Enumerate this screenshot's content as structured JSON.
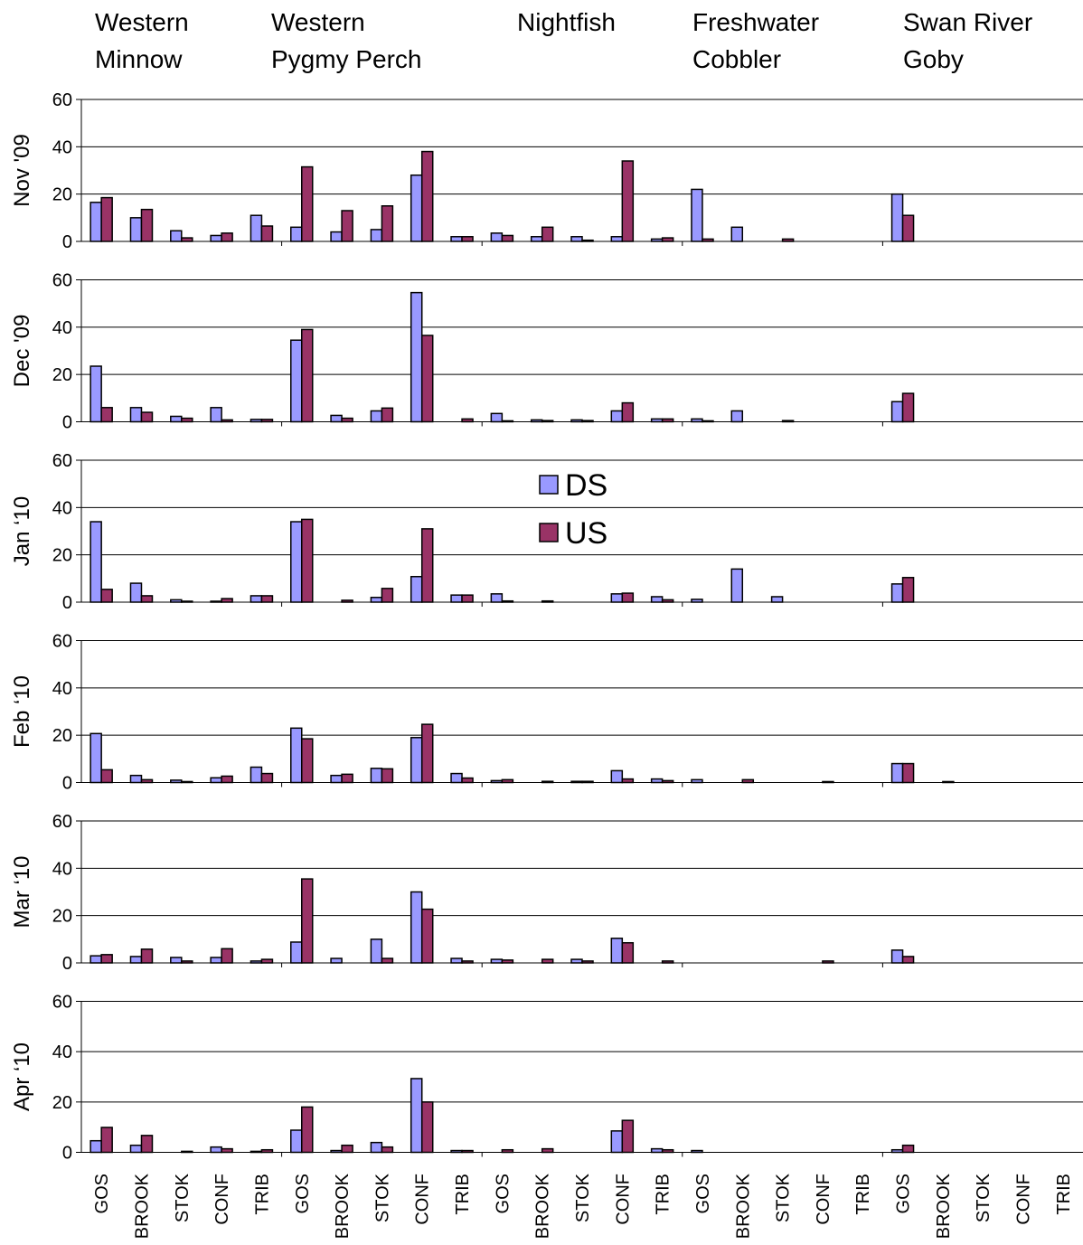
{
  "chart_data": {
    "type": "bar",
    "columns": [
      "Western Minnow",
      "Western Pygmy Perch",
      "Nightfish",
      "Freshwater Cobbler",
      "Swan River Goby"
    ],
    "rows": [
      "Nov '09",
      "Dec '09",
      "Jan ‘10",
      "Feb ‘10",
      "Mar ‘10",
      "Apr ‘10"
    ],
    "categories": [
      "GOS",
      "BROOK",
      "STOK",
      "CONF",
      "TRIB"
    ],
    "ylim": [
      0,
      60
    ],
    "yticks": [
      0,
      20,
      40,
      60
    ],
    "grid": true,
    "series": [
      {
        "name": "DS",
        "color": "#9999ff",
        "values": [
          [
            [
              16.5,
              10,
              4.5,
              2.5,
              11
            ],
            [
              6,
              4,
              5,
              28,
              2
            ],
            [
              3.5,
              2,
              2,
              2,
              1
            ],
            [
              22,
              6,
              0,
              0,
              0
            ],
            [
              20,
              0,
              0,
              0,
              0
            ]
          ],
          [
            [
              23.5,
              6,
              2.3,
              6,
              1
            ],
            [
              34.5,
              2.7,
              4.6,
              54.6,
              0
            ],
            [
              3.5,
              0.8,
              0.8,
              4.6,
              1.2
            ],
            [
              1.2,
              4.6,
              0,
              0,
              0
            ],
            [
              8.5,
              0,
              0,
              0,
              0
            ]
          ],
          [
            [
              34,
              8,
              1,
              0.4,
              2.7
            ],
            [
              34,
              0,
              2,
              10.8,
              3
            ],
            [
              3.5,
              0,
              0,
              3.5,
              2.3
            ],
            [
              1.2,
              14,
              2.3,
              0,
              0
            ],
            [
              7.7,
              0,
              0,
              0,
              0
            ]
          ],
          [
            [
              20.7,
              3,
              1,
              2,
              6.5
            ],
            [
              23,
              3,
              6,
              19,
              3.8
            ],
            [
              0.8,
              0,
              0.5,
              5,
              1.5
            ],
            [
              1.2,
              0,
              0,
              0,
              0
            ],
            [
              8,
              0,
              0,
              0,
              0
            ]
          ],
          [
            [
              3,
              2.7,
              2.3,
              2.3,
              0.8
            ],
            [
              8.8,
              1.9,
              10,
              30,
              1.9
            ],
            [
              1.5,
              0,
              1.5,
              10.4,
              0
            ],
            [
              0,
              0,
              0,
              0,
              0
            ],
            [
              5.4,
              0,
              0,
              0,
              0
            ]
          ],
          [
            [
              4.6,
              2.8,
              0,
              2.1,
              0.4
            ],
            [
              8.8,
              0.7,
              3.9,
              29.3,
              0.7
            ],
            [
              0,
              0,
              0,
              8.5,
              1.4
            ],
            [
              0.7,
              0,
              0,
              0,
              0
            ],
            [
              1,
              0,
              0,
              0,
              0
            ]
          ]
        ]
      },
      {
        "name": "US",
        "color": "#993366",
        "values": [
          [
            [
              18.5,
              13.5,
              1.5,
              3.5,
              6.5
            ],
            [
              31.5,
              13,
              15,
              38,
              2
            ],
            [
              2.5,
              6,
              0.5,
              34,
              1.5
            ],
            [
              1,
              0,
              1,
              0,
              0
            ],
            [
              11,
              0,
              0,
              0,
              0
            ]
          ],
          [
            [
              6,
              4,
              1.5,
              0.8,
              1
            ],
            [
              39,
              1.5,
              5.8,
              36.5,
              1.2
            ],
            [
              0.4,
              0.5,
              0.5,
              8,
              1.2
            ],
            [
              0.4,
              0,
              0.5,
              0,
              0
            ],
            [
              12,
              0,
              0,
              0,
              0
            ]
          ],
          [
            [
              5.4,
              2.7,
              0.4,
              1.5,
              2.7
            ],
            [
              35,
              0.8,
              5.8,
              31,
              3
            ],
            [
              0.5,
              0.5,
              0,
              3.8,
              1
            ],
            [
              0,
              0,
              0,
              0,
              0
            ],
            [
              10.4,
              0,
              0,
              0,
              0
            ]
          ],
          [
            [
              5.4,
              1.2,
              0.4,
              2.7,
              3.8
            ],
            [
              18.5,
              3.5,
              5.8,
              24.6,
              1.9
            ],
            [
              1.2,
              0.5,
              0.5,
              1.5,
              0.8
            ],
            [
              0,
              1.2,
              0,
              0.4,
              0
            ],
            [
              8,
              0.4,
              0,
              0,
              0
            ]
          ],
          [
            [
              3.5,
              5.8,
              0.8,
              6,
              1.5
            ],
            [
              35.5,
              0,
              1.9,
              22.7,
              0.8
            ],
            [
              1.2,
              1.5,
              0.8,
              8.5,
              0.8
            ],
            [
              0,
              0,
              0,
              0.8,
              0
            ],
            [
              2.7,
              0,
              0,
              0,
              0
            ]
          ],
          [
            [
              9.9,
              6.7,
              0.4,
              1.4,
              1
            ],
            [
              18,
              2.8,
              2.1,
              20,
              0.7
            ],
            [
              1,
              1.4,
              0,
              12.7,
              1
            ],
            [
              0,
              0,
              0,
              0,
              0
            ],
            [
              2.8,
              0,
              0,
              0,
              0
            ]
          ]
        ]
      }
    ]
  }
}
